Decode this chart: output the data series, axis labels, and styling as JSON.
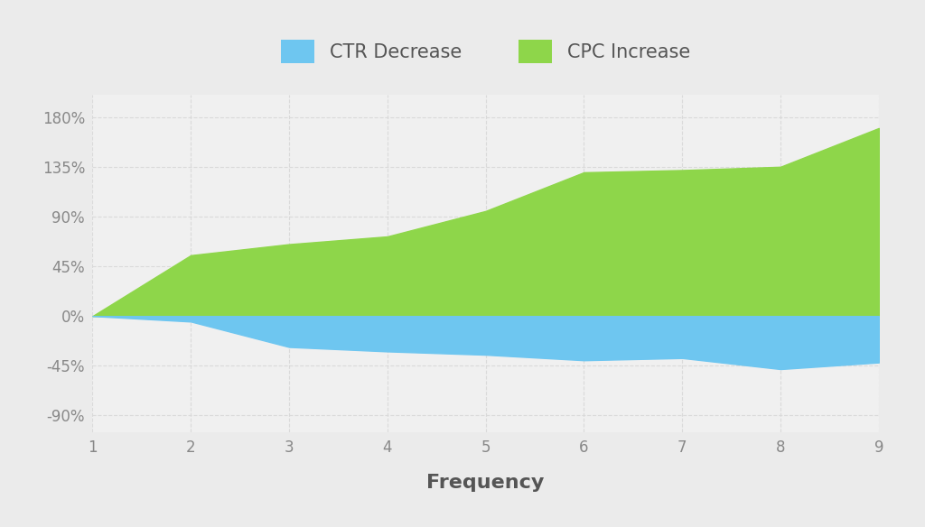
{
  "x": [
    1,
    2,
    3,
    4,
    5,
    6,
    7,
    8,
    9
  ],
  "ctr_decrease": [
    0,
    -5,
    -28,
    -32,
    -35,
    -40,
    -38,
    -48,
    -42
  ],
  "cpc_increase": [
    0,
    55,
    65,
    72,
    95,
    130,
    132,
    135,
    170
  ],
  "ctr_color": "#6ec6f0",
  "cpc_color": "#8ed64a",
  "background_color": "#ebebeb",
  "plot_bg_color": "#f0f0f0",
  "grid_color": "#d8d8d8",
  "xlabel": "Frequency",
  "legend_labels": [
    "CTR Decrease",
    "CPC Increase"
  ],
  "yticks": [
    -90,
    -45,
    0,
    45,
    90,
    135,
    180
  ],
  "ytick_labels": [
    "-90%",
    "-45%",
    "0%",
    "45%",
    "90%",
    "135%",
    "180%"
  ],
  "xticks": [
    1,
    2,
    3,
    4,
    5,
    6,
    7,
    8,
    9
  ],
  "ylim": [
    -105,
    200
  ],
  "xlim": [
    1,
    9
  ]
}
